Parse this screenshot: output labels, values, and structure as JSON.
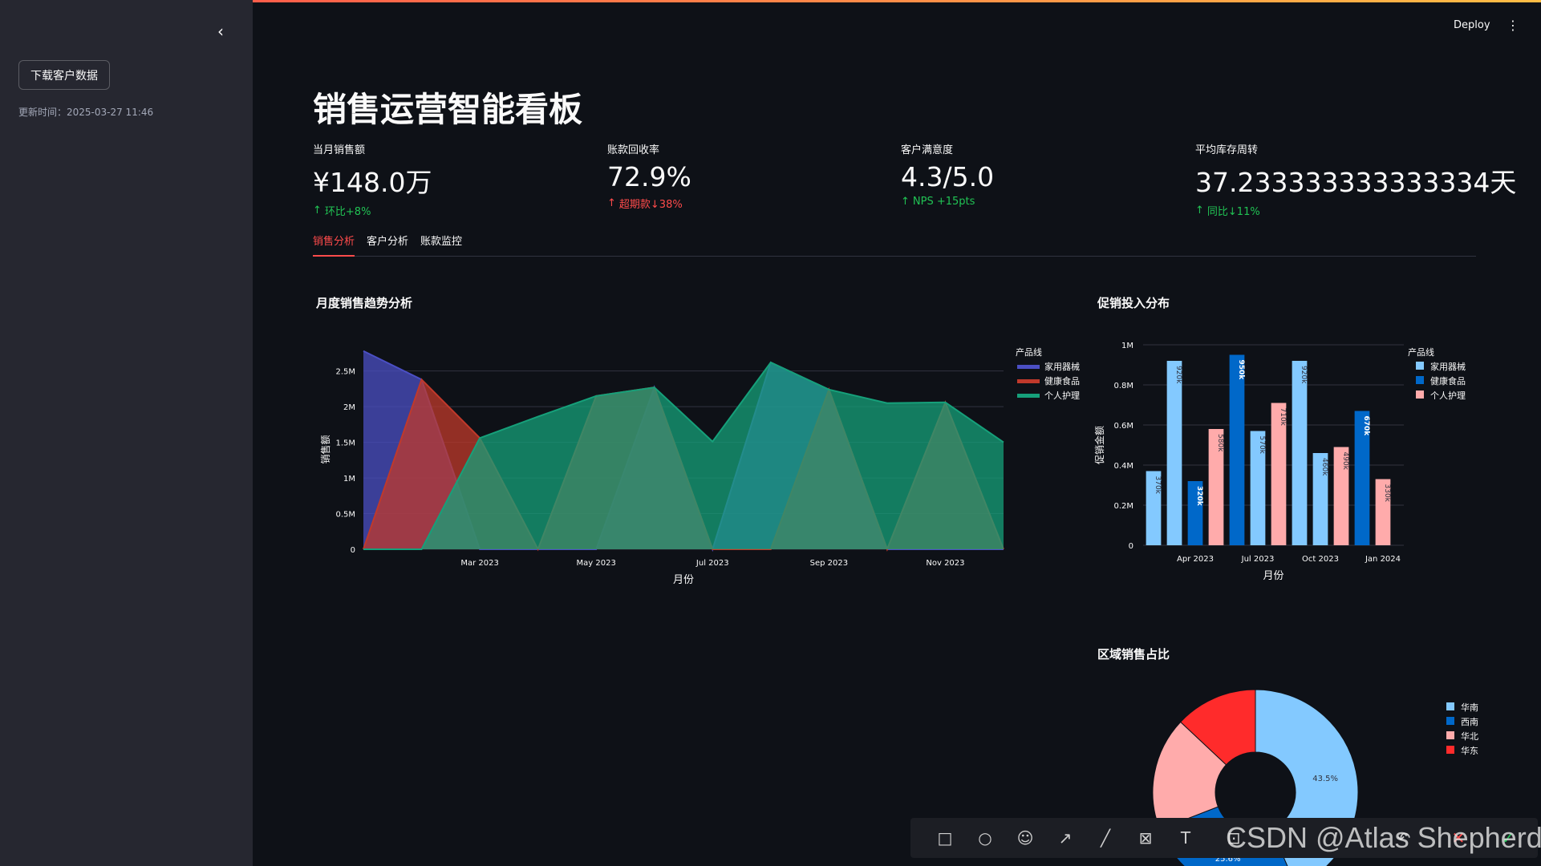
{
  "sidebar": {
    "collapse_icon": "chevron-left-icon",
    "download_label": "下载客户数据",
    "updated_text": "更新时间：2025-03-27 11:46"
  },
  "header": {
    "deploy_label": "Deploy",
    "menu_icon": "vertical-dots-icon"
  },
  "page_title": "销售运营智能看板",
  "metrics": [
    {
      "label": "当月销售额",
      "value": "¥148.0万",
      "delta": "环比+8%",
      "arrow": "↑",
      "status": "up"
    },
    {
      "label": "账款回收率",
      "value": "72.9%",
      "delta": "超期款↓38%",
      "arrow": "↑",
      "status": "bad"
    },
    {
      "label": "客户满意度",
      "value": "4.3/5.0",
      "delta": "NPS +15pts",
      "arrow": "↑",
      "status": "up"
    },
    {
      "label": "平均库存周转",
      "value": "37.233333333333334天",
      "delta": "同比↓11%",
      "arrow": "↑",
      "status": "up"
    }
  ],
  "tabs": [
    "销售分析",
    "客户分析",
    "账款监控"
  ],
  "colors": {
    "accent": "#ff4b4b",
    "up": "#21c354",
    "bg": "#0e1117",
    "sidebar": "#262730"
  },
  "chart_data": [
    {
      "type": "area",
      "title": "月度销售趋势分析",
      "xlabel": "月份",
      "ylabel": "销售额",
      "x": [
        "2023-01",
        "2023-02",
        "2023-03",
        "2023-04",
        "2023-05",
        "2023-06",
        "2023-07",
        "2023-08",
        "2023-09",
        "2023-10",
        "2023-11",
        "2023-12"
      ],
      "x_tick_labels": [
        "Mar 2023",
        "May 2023",
        "Jul 2023",
        "Sep 2023",
        "Nov 2023"
      ],
      "y_tick_labels": [
        "0",
        "0.5M",
        "1M",
        "1.5M",
        "2M",
        "2.5M"
      ],
      "ylim": [
        0,
        2800000
      ],
      "legend_title": "产品线",
      "legend_position": "top-right",
      "series": [
        {
          "name": "家用器械",
          "color": "#4b4fc4",
          "values": [
            2780000,
            2380000,
            0,
            0,
            0,
            2270000,
            0,
            2620000,
            2240000,
            0,
            0,
            0
          ]
        },
        {
          "name": "健康食品",
          "color": "#c0392b",
          "values": [
            0,
            2380000,
            1560000,
            0,
            2150000,
            2270000,
            0,
            0,
            2240000,
            0,
            2060000,
            0
          ]
        },
        {
          "name": "个人护理",
          "color": "#16a07a",
          "values": [
            0,
            0,
            1560000,
            1860000,
            2150000,
            2270000,
            1510000,
            2620000,
            2240000,
            2050000,
            2060000,
            1500000
          ]
        }
      ]
    },
    {
      "type": "bar",
      "title": "促销投入分布",
      "xlabel": "月份",
      "ylabel": "促销金额",
      "categories": [
        "2023-01",
        "2023-02",
        "2023-03",
        "2023-04",
        "2023-05",
        "2023-06",
        "2023-07",
        "2023-08",
        "2023-09",
        "2023-10",
        "2023-11",
        "2023-12",
        "2024-01"
      ],
      "x_tick_labels": [
        "Apr 2023",
        "Jul 2023",
        "Oct 2023",
        "Jan 2024"
      ],
      "y_tick_labels": [
        "0",
        "0.2M",
        "0.4M",
        "0.6M",
        "0.8M",
        "1M"
      ],
      "ylim": [
        0,
        1000000
      ],
      "legend_title": "产品线",
      "legend_position": "top-right",
      "series_colors": {
        "家用器械": "#83c9ff",
        "健康食品": "#0068c9",
        "个人护理": "#ffabab"
      },
      "bars": [
        {
          "series": "家用器械",
          "value": 370000,
          "label": "370k"
        },
        {
          "series": "家用器械",
          "value": 920000,
          "label": "920k"
        },
        {
          "series": "健康食品",
          "value": 320000,
          "label": "320k"
        },
        {
          "series": "个人护理",
          "value": 580000,
          "label": "580k"
        },
        {
          "series": "健康食品",
          "value": 950000,
          "label": "950k"
        },
        {
          "series": "家用器械",
          "value": 570000,
          "label": "570k"
        },
        {
          "series": "个人护理",
          "value": 710000,
          "label": "710k"
        },
        {
          "series": "家用器械",
          "value": 920000,
          "label": "920k"
        },
        {
          "series": "家用器械",
          "value": 460000,
          "label": "460k"
        },
        {
          "series": "个人护理",
          "value": 490000,
          "label": "490k"
        },
        {
          "series": "健康食品",
          "value": 670000,
          "label": "670k"
        },
        {
          "series": "个人护理",
          "value": 330000,
          "label": "330k"
        }
      ],
      "legend": [
        "家用器械",
        "健康食品",
        "个人护理"
      ]
    },
    {
      "type": "pie",
      "title": "区域销售占比",
      "legend_position": "top-right",
      "slices": [
        {
          "name": "华南",
          "value": 43.5,
          "label": "43.5%",
          "color": "#83c9ff"
        },
        {
          "name": "西南",
          "value": 25.6,
          "label": "25.6%",
          "color": "#0068c9"
        },
        {
          "name": "华北",
          "value": 17.9,
          "label": "",
          "color": "#ffabab"
        },
        {
          "name": "华东",
          "value": 13.0,
          "label": "",
          "color": "#ff2b2b"
        }
      ]
    }
  ],
  "toolbar_icons": [
    "rectangle-icon",
    "circle-icon",
    "emoji-icon",
    "arrow-icon",
    "line-icon",
    "mosaic-icon",
    "text-icon",
    "pin-icon",
    "undo-icon",
    "close-icon",
    "check-icon"
  ],
  "watermark": "CSDN @Atlas Shepherd"
}
